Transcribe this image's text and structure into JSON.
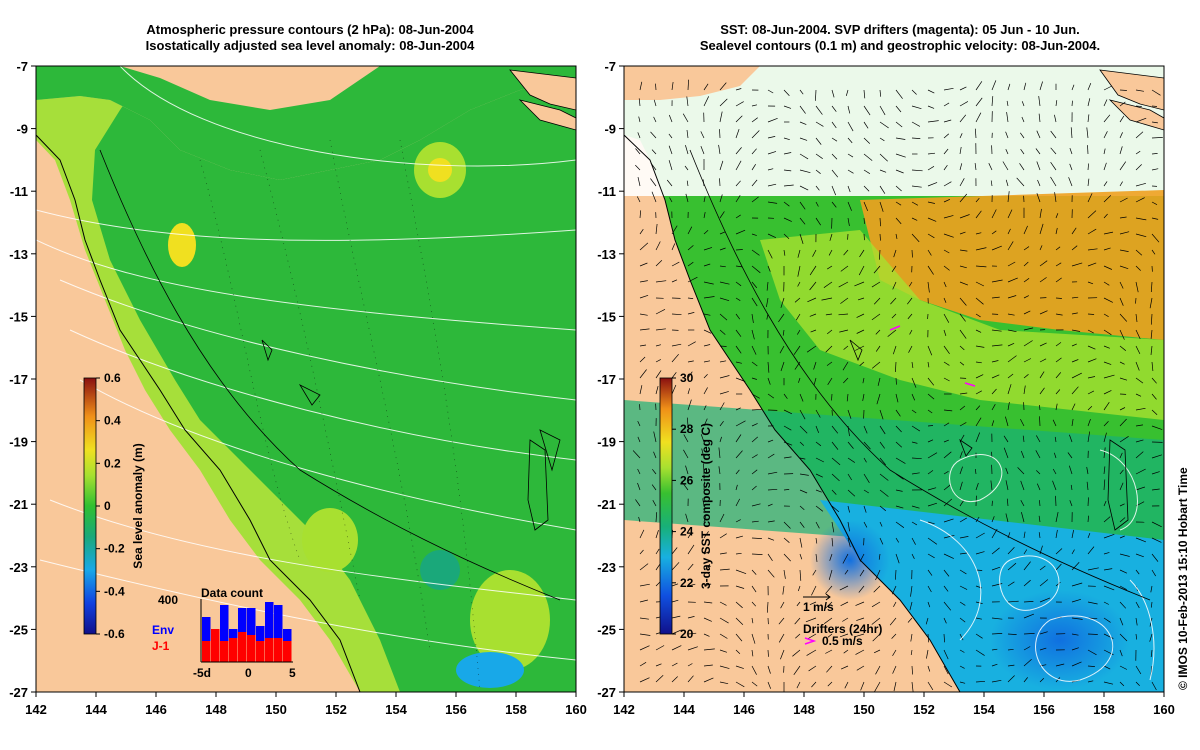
{
  "left_panel": {
    "title_line1": "Atmospheric pressure contours (2 hPa): 08-Jun-2004",
    "title_line2": "Isostatically adjusted sea level anomaly: 08-Jun-2004",
    "colorbar_label": "Sea level anomaly (m)",
    "colorbar_ticks": [
      "0.6",
      "0.4",
      "0.2",
      "0",
      "-0.2",
      "-0.4",
      "-0.6"
    ],
    "inset": {
      "title": "Data count",
      "y_label": "400",
      "series_env": "Env",
      "series_j1": "J-1",
      "x_ticks": [
        "-5d",
        "0",
        "5"
      ],
      "env_values": [
        0.75,
        0.55,
        0.95,
        0.55,
        0.9,
        0.9,
        0.6,
        1.0,
        0.95,
        0.55
      ],
      "j1_values": [
        0.35,
        0.55,
        0.35,
        0.4,
        0.5,
        0.45,
        0.35,
        0.4,
        0.4,
        0.35
      ]
    }
  },
  "right_panel": {
    "title_line1": "SST: 08-Jun-2004. SVP drifters (magenta): 05 Jun - 10 Jun.",
    "title_line2": "Sealevel contours (0.1 m) and geostrophic velocity: 08-Jun-2004.",
    "colorbar_label": "3-day SST composite (deg C)",
    "colorbar_ticks": [
      "30",
      "28",
      "26",
      "24",
      "22",
      "20"
    ],
    "velocity_legend": "1 m/s",
    "drifter_legend_title": "Drifters (24hr)",
    "drifter_legend_value": "0.5 m/s"
  },
  "axes": {
    "x_ticks": [
      "142",
      "144",
      "146",
      "148",
      "150",
      "152",
      "154",
      "156",
      "158",
      "160"
    ],
    "y_ticks": [
      "-7",
      "-9",
      "-11",
      "-13",
      "-15",
      "-17",
      "-19",
      "-21",
      "-23",
      "-25",
      "-27"
    ]
  },
  "copyright": "© IMOS 10-Feb-2013 15:10 Hobart Time",
  "colors": {
    "land": "#f9c89a",
    "ocean_green": "#2db83a",
    "ocean_light": "#8fd93a",
    "sst_orange": "#f0a020",
    "sst_blue": "#1a8fd0"
  }
}
